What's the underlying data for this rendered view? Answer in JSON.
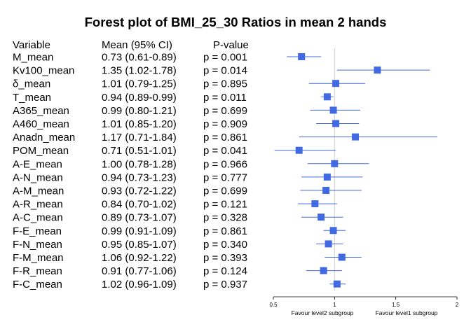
{
  "chart_data": {
    "type": "forest",
    "title": "Forest plot of BMI_25_30 Ratios in mean 2 hands",
    "headers": {
      "variable": "Variable",
      "mean": "Mean (95% CI)",
      "pvalue": "P-value"
    },
    "xlim": [
      0.5,
      2
    ],
    "xticks": [
      "0.5",
      "1",
      "1.5",
      "2"
    ],
    "reference_line": 1,
    "favour_left": "Favour level2 subgroup",
    "favour_right": "Favour level1 subgroup",
    "marker_color": "#4169e1",
    "rows": [
      {
        "variable": "M_mean",
        "mean_ci": "0.73 (0.61-0.89)",
        "p": "p = 0.001",
        "mean": 0.73,
        "lo": 0.61,
        "hi": 0.89
      },
      {
        "variable": "Kv100_mean",
        "mean_ci": "1.35 (1.02-1.78)",
        "p": "p = 0.014",
        "mean": 1.35,
        "lo": 1.02,
        "hi": 1.78
      },
      {
        "variable": "δ_mean",
        "mean_ci": "1.01 (0.79-1.25)",
        "p": "p = 0.895",
        "mean": 1.01,
        "lo": 0.79,
        "hi": 1.25
      },
      {
        "variable": "T_mean",
        "mean_ci": "0.94 (0.89-0.99)",
        "p": "p = 0.011",
        "mean": 0.94,
        "lo": 0.89,
        "hi": 0.99
      },
      {
        "variable": "A365_mean",
        "mean_ci": "0.99 (0.80-1.21)",
        "p": "p = 0.699",
        "mean": 0.99,
        "lo": 0.8,
        "hi": 1.21
      },
      {
        "variable": "A460_mean",
        "mean_ci": "1.01 (0.85-1.20)",
        "p": "p = 0.909",
        "mean": 1.01,
        "lo": 0.85,
        "hi": 1.2
      },
      {
        "variable": "Anadn_mean",
        "mean_ci": "1.17 (0.71-1.84)",
        "p": "p = 0.861",
        "mean": 1.17,
        "lo": 0.71,
        "hi": 1.84
      },
      {
        "variable": "POM_mean",
        "mean_ci": "0.71 (0.51-1.01)",
        "p": "p = 0.041",
        "mean": 0.71,
        "lo": 0.51,
        "hi": 1.01
      },
      {
        "variable": "A-E_mean",
        "mean_ci": "1.00 (0.78-1.28)",
        "p": "p = 0.966",
        "mean": 1.0,
        "lo": 0.78,
        "hi": 1.28
      },
      {
        "variable": "A-N_mean",
        "mean_ci": "0.94 (0.73-1.23)",
        "p": "p = 0.777",
        "mean": 0.94,
        "lo": 0.73,
        "hi": 1.23
      },
      {
        "variable": "A-M_mean",
        "mean_ci": "0.93 (0.72-1.22)",
        "p": "p = 0.699",
        "mean": 0.93,
        "lo": 0.72,
        "hi": 1.22
      },
      {
        "variable": "A-R_mean",
        "mean_ci": "0.84 (0.70-1.02)",
        "p": "p = 0.121",
        "mean": 0.84,
        "lo": 0.7,
        "hi": 1.02
      },
      {
        "variable": "A-C_mean",
        "mean_ci": "0.89 (0.73-1.07)",
        "p": "p = 0.328",
        "mean": 0.89,
        "lo": 0.73,
        "hi": 1.07
      },
      {
        "variable": "F-E_mean",
        "mean_ci": "0.99 (0.91-1.09)",
        "p": "p = 0.861",
        "mean": 0.99,
        "lo": 0.91,
        "hi": 1.09
      },
      {
        "variable": "F-N_mean",
        "mean_ci": "0.95 (0.85-1.07)",
        "p": "p = 0.340",
        "mean": 0.95,
        "lo": 0.85,
        "hi": 1.07
      },
      {
        "variable": "F-M_mean",
        "mean_ci": "1.06 (0.92-1.22)",
        "p": "p = 0.393",
        "mean": 1.06,
        "lo": 0.92,
        "hi": 1.22
      },
      {
        "variable": "F-R_mean",
        "mean_ci": "0.91 (0.77-1.06)",
        "p": "p = 0.124",
        "mean": 0.91,
        "lo": 0.77,
        "hi": 1.06
      },
      {
        "variable": "F-C_mean",
        "mean_ci": "1.02 (0.96-1.09)",
        "p": "p = 0.937",
        "mean": 1.02,
        "lo": 0.96,
        "hi": 1.09
      }
    ]
  }
}
